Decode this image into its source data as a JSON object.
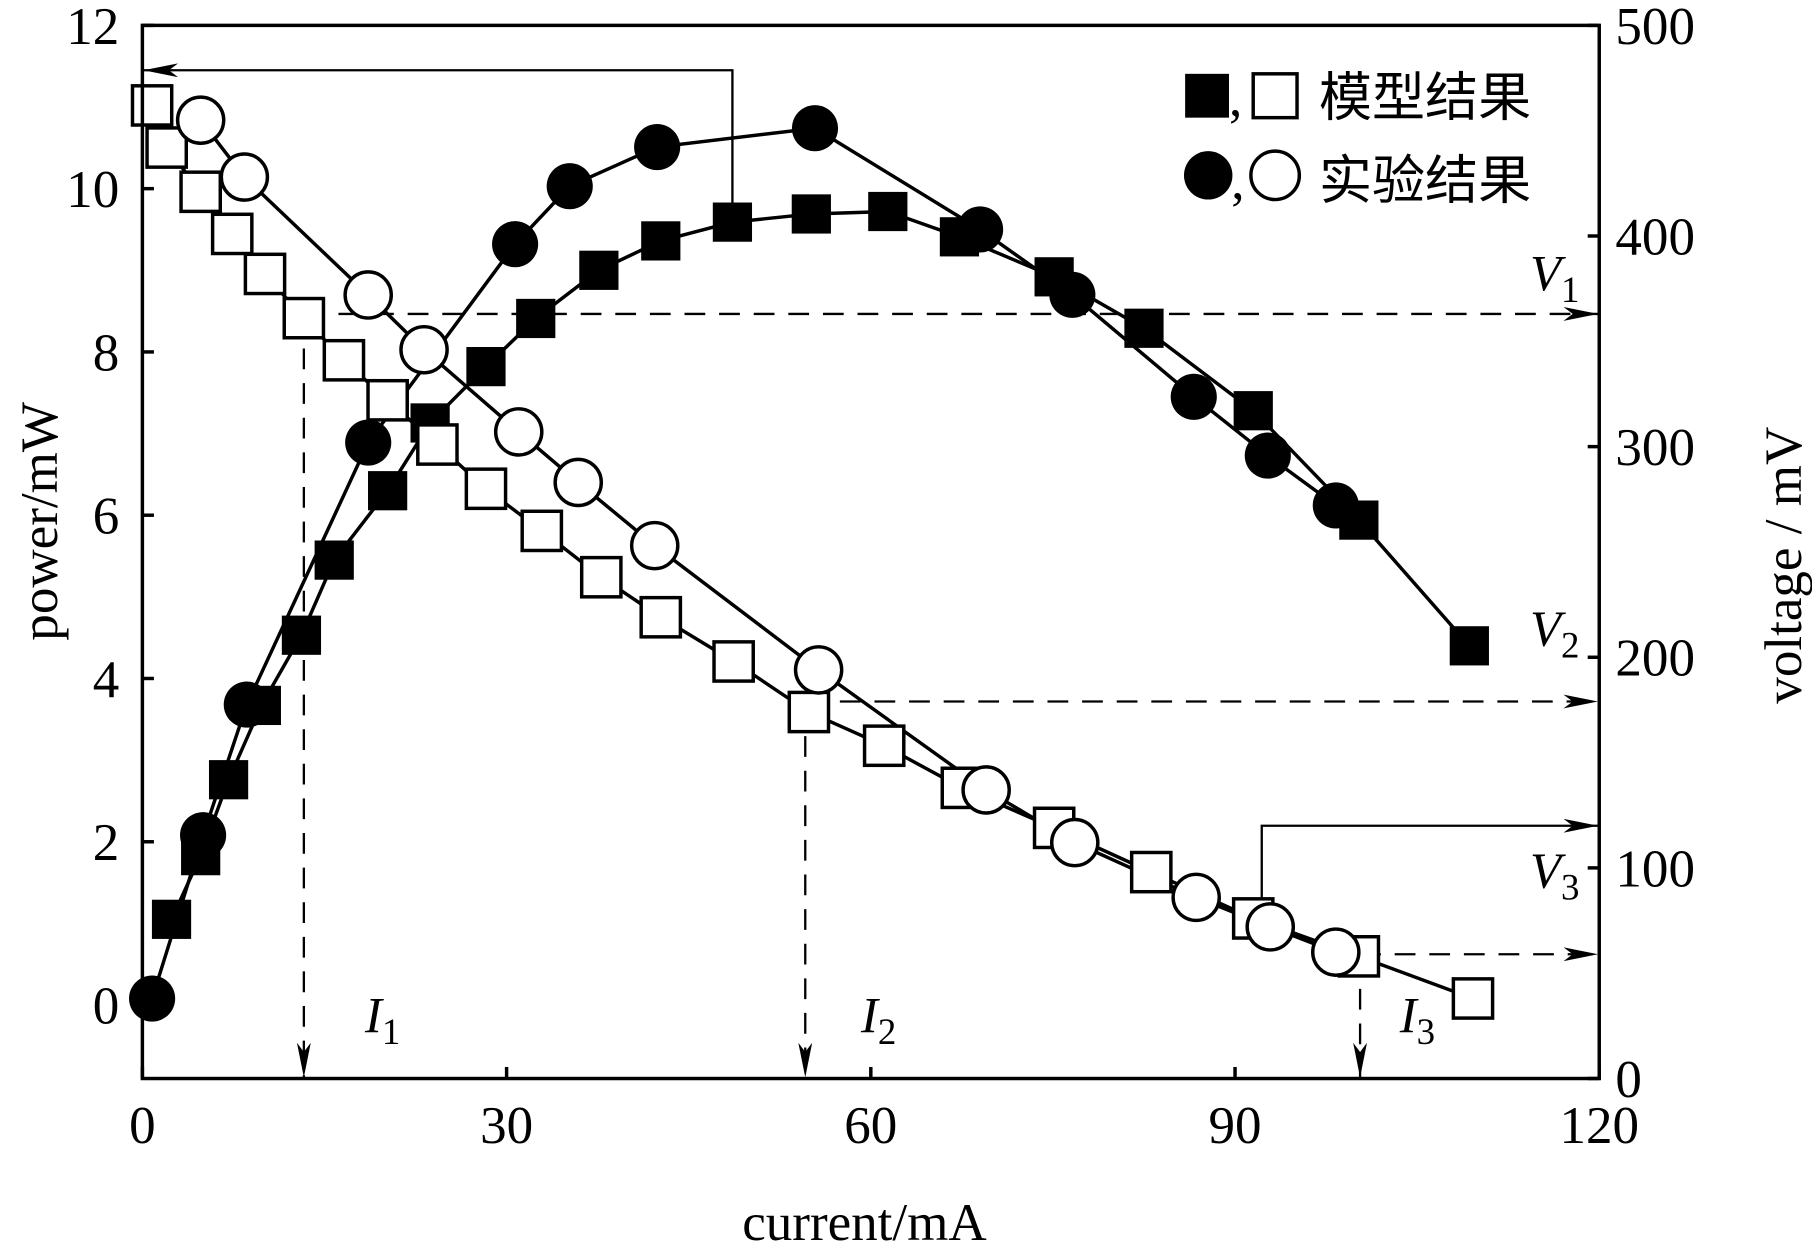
{
  "chart_data": {
    "type": "line",
    "xlabel": "current/mA",
    "ylabel": "power/mW",
    "y2label": "voltage / mV",
    "xlim": [
      0,
      120
    ],
    "ylim": [
      -0.9,
      12
    ],
    "y2lim": [
      0,
      500
    ],
    "xticks": [
      "0",
      "30",
      "60",
      "90",
      "120"
    ],
    "yticks": [
      "0",
      "2",
      "4",
      "6",
      "8",
      "10",
      "12"
    ],
    "y2ticks": [
      "0",
      "100",
      "200",
      "300",
      "400",
      "500"
    ],
    "grid": false,
    "legend_position": "top-right",
    "legend": [
      {
        "markers": "filled-square, open-square",
        "sep": ",",
        "label": "模型结果"
      },
      {
        "markers": "filled-circle, open-circle",
        "sep": ",",
        "label": "实验结果"
      }
    ],
    "series": [
      {
        "legend": "模型结果",
        "axis": "left",
        "marker": "filled-square",
        "x": [
          2.4,
          4.8,
          7.1,
          9.8,
          13.1,
          15.8,
          20.2,
          23.7,
          28.3,
          32.4,
          37.6,
          42.7,
          48.6,
          55.1,
          61.4,
          67.3,
          75.1,
          82.5,
          91.5,
          100.2,
          109.3
        ],
        "y": [
          1.05,
          1.83,
          2.76,
          3.67,
          4.53,
          5.45,
          6.3,
          7.13,
          7.82,
          8.41,
          9.0,
          9.36,
          9.59,
          9.69,
          9.72,
          9.41,
          8.92,
          8.29,
          7.28,
          5.94,
          4.4
        ]
      },
      {
        "legend": "实验结果",
        "axis": "left",
        "marker": "filled-circle",
        "x": [
          0.8,
          5.0,
          8.6,
          18.6,
          30.7,
          35.2,
          42.4,
          55.4,
          69.0,
          76.6,
          86.6,
          92.7,
          98.3
        ],
        "y": [
          0.08,
          2.08,
          3.68,
          6.89,
          9.32,
          10.03,
          10.51,
          10.74,
          9.5,
          8.7,
          7.45,
          6.73,
          6.12
        ]
      },
      {
        "legend": "模型结果",
        "axis": "right",
        "marker": "open-square",
        "x": [
          0.8,
          2.0,
          4.8,
          7.4,
          10.1,
          13.3,
          16.6,
          20.2,
          24.3,
          28.3,
          32.9,
          37.8,
          42.7,
          48.7,
          54.9,
          61.1,
          67.5,
          75.1,
          83.1,
          91.5,
          100.2,
          109.6
        ],
        "y": [
          462,
          442,
          421,
          401,
          382,
          361,
          341,
          322,
          301,
          280,
          260,
          238,
          219,
          198,
          174,
          158,
          138,
          119,
          98,
          76,
          58,
          38
        ]
      },
      {
        "legend": "实验结果",
        "axis": "right",
        "marker": "open-circle",
        "x": [
          4.8,
          8.4,
          18.6,
          23.2,
          31.0,
          35.9,
          42.2,
          55.7,
          69.5,
          76.8,
          86.8,
          92.9,
          98.3
        ],
        "y": [
          455,
          428,
          372,
          346,
          307,
          283,
          253,
          194,
          137,
          112,
          86,
          72,
          60
        ]
      }
    ],
    "annotations": [
      {
        "symbol": "I",
        "sub": "1",
        "x": 13.3
      },
      {
        "symbol": "I",
        "sub": "2",
        "x": 54.6
      },
      {
        "symbol": "I",
        "sub": "3",
        "x": 100.3
      },
      {
        "symbol": "V",
        "sub": "1",
        "voltage": 363
      },
      {
        "symbol": "V",
        "sub": "2",
        "voltage": 179
      },
      {
        "symbol": "V",
        "sub": "3",
        "voltage": 59
      }
    ],
    "colors": {
      "ink": "#000000",
      "background": "#ffffff"
    }
  }
}
